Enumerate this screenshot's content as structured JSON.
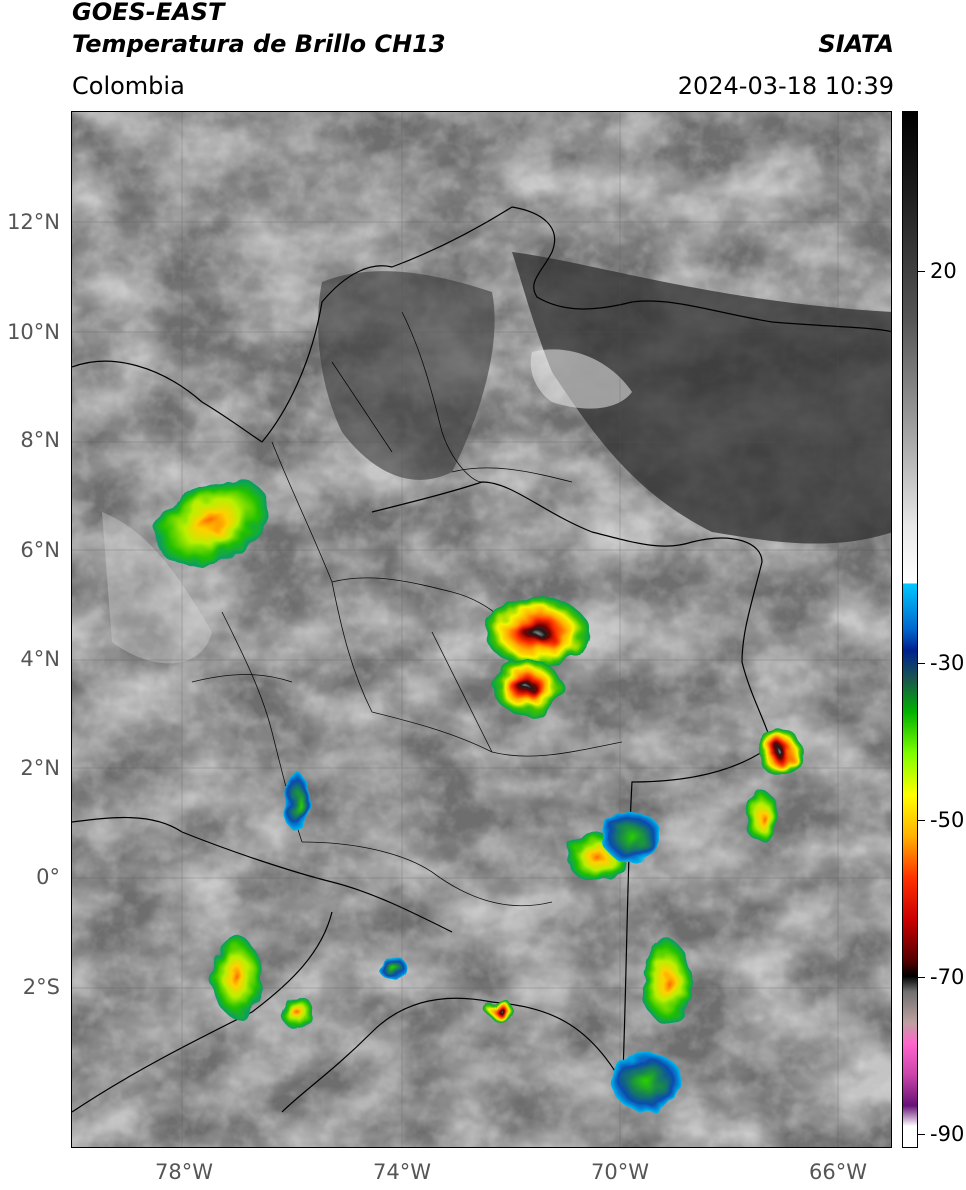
{
  "header": {
    "satellite": "GOES-EAST",
    "product": "Temperatura de Brillo CH13",
    "source": "SIATA",
    "region": "Colombia",
    "datetime": "2024-03-18 10:39"
  },
  "map": {
    "lat_ticks": [
      "12°N",
      "10°N",
      "8°N",
      "6°N",
      "4°N",
      "2°N",
      "0°",
      "2°S"
    ],
    "lon_ticks": [
      "78°W",
      "74°W",
      "70°W",
      "66°W"
    ],
    "colorbar": {
      "ticks": [
        "20",
        "-30",
        "-50",
        "-70",
        "-90"
      ],
      "palette": {
        "warm": "#000000",
        "cold_cyan": "#00c8ff",
        "green": "#00b300",
        "yellow": "#ffff00",
        "red": "#ff3000",
        "magenta": "#ff66cc"
      }
    },
    "features": [
      "convective-cell",
      "convective-cell",
      "convective-cell",
      "convective-cell",
      "convective-cell",
      "convective-cell",
      "convective-cell",
      "convective-cell"
    ]
  }
}
